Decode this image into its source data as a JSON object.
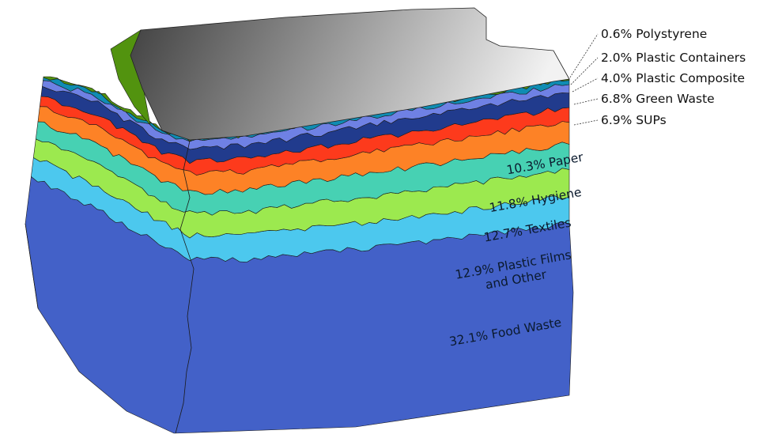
{
  "chart_data": {
    "type": "stacked-layers",
    "unit": "%",
    "series": [
      {
        "name": "Food Waste",
        "label": "32.1% Food Waste",
        "value": 32.1,
        "color": "#4361c8"
      },
      {
        "name": "Plastic Films and Other",
        "label": "12.9% Plastic Films and Other",
        "value": 12.9,
        "color": "#4cc8ee"
      },
      {
        "name": "Textiles",
        "label": "12.7% Textiles",
        "value": 12.7,
        "color": "#9ce94f"
      },
      {
        "name": "Hygiene",
        "label": "11.8% Hygiene",
        "value": 11.8,
        "color": "#47d1b3"
      },
      {
        "name": "Paper",
        "label": "10.3% Paper",
        "value": 10.3,
        "color": "#fd8226"
      },
      {
        "name": "SUPs",
        "label": "6.9% SUPs",
        "value": 6.9,
        "color": "#fd3a1c"
      },
      {
        "name": "Green Waste",
        "label": "6.8% Green Waste",
        "value": 6.8,
        "color": "#213b8d"
      },
      {
        "name": "Plastic Composite",
        "label": "4.0% Plastic Composite",
        "value": 4.0,
        "color": "#6f81e4"
      },
      {
        "name": "Plastic Containers",
        "label": "2.0% Plastic Containers",
        "value": 2.0,
        "color": "#0f8cb3"
      },
      {
        "name": "Polystyrene",
        "label": "0.6% Polystyrene",
        "value": 0.6,
        "color": "#52930f"
      }
    ],
    "inside_labels": [
      {
        "series": "Paper",
        "lines": [
          "10.3% Paper"
        ]
      },
      {
        "series": "Hygiene",
        "lines": [
          "11.8% Hygiene"
        ]
      },
      {
        "series": "Textiles",
        "lines": [
          "12.7% Textiles"
        ]
      },
      {
        "series": "Plastic Films and Other",
        "lines": [
          "12.9% Plastic Films",
          "and Other"
        ]
      },
      {
        "series": "Food Waste",
        "lines": [
          "32.1% Food Waste"
        ]
      }
    ],
    "callout_labels": [
      {
        "series": "Polystyrene",
        "text": "0.6% Polystyrene"
      },
      {
        "series": "Plastic Containers",
        "text": "2.0% Plastic Containers"
      },
      {
        "series": "Plastic Composite",
        "text": "4.0% Plastic Composite"
      },
      {
        "series": "Green Waste",
        "text": "6.8% Green Waste"
      },
      {
        "series": "SUPs",
        "text": "6.9% SUPs"
      }
    ],
    "top_surface": {
      "gradient": [
        "#3f3f3f",
        "#f2f2f2"
      ]
    },
    "legend": "none"
  }
}
